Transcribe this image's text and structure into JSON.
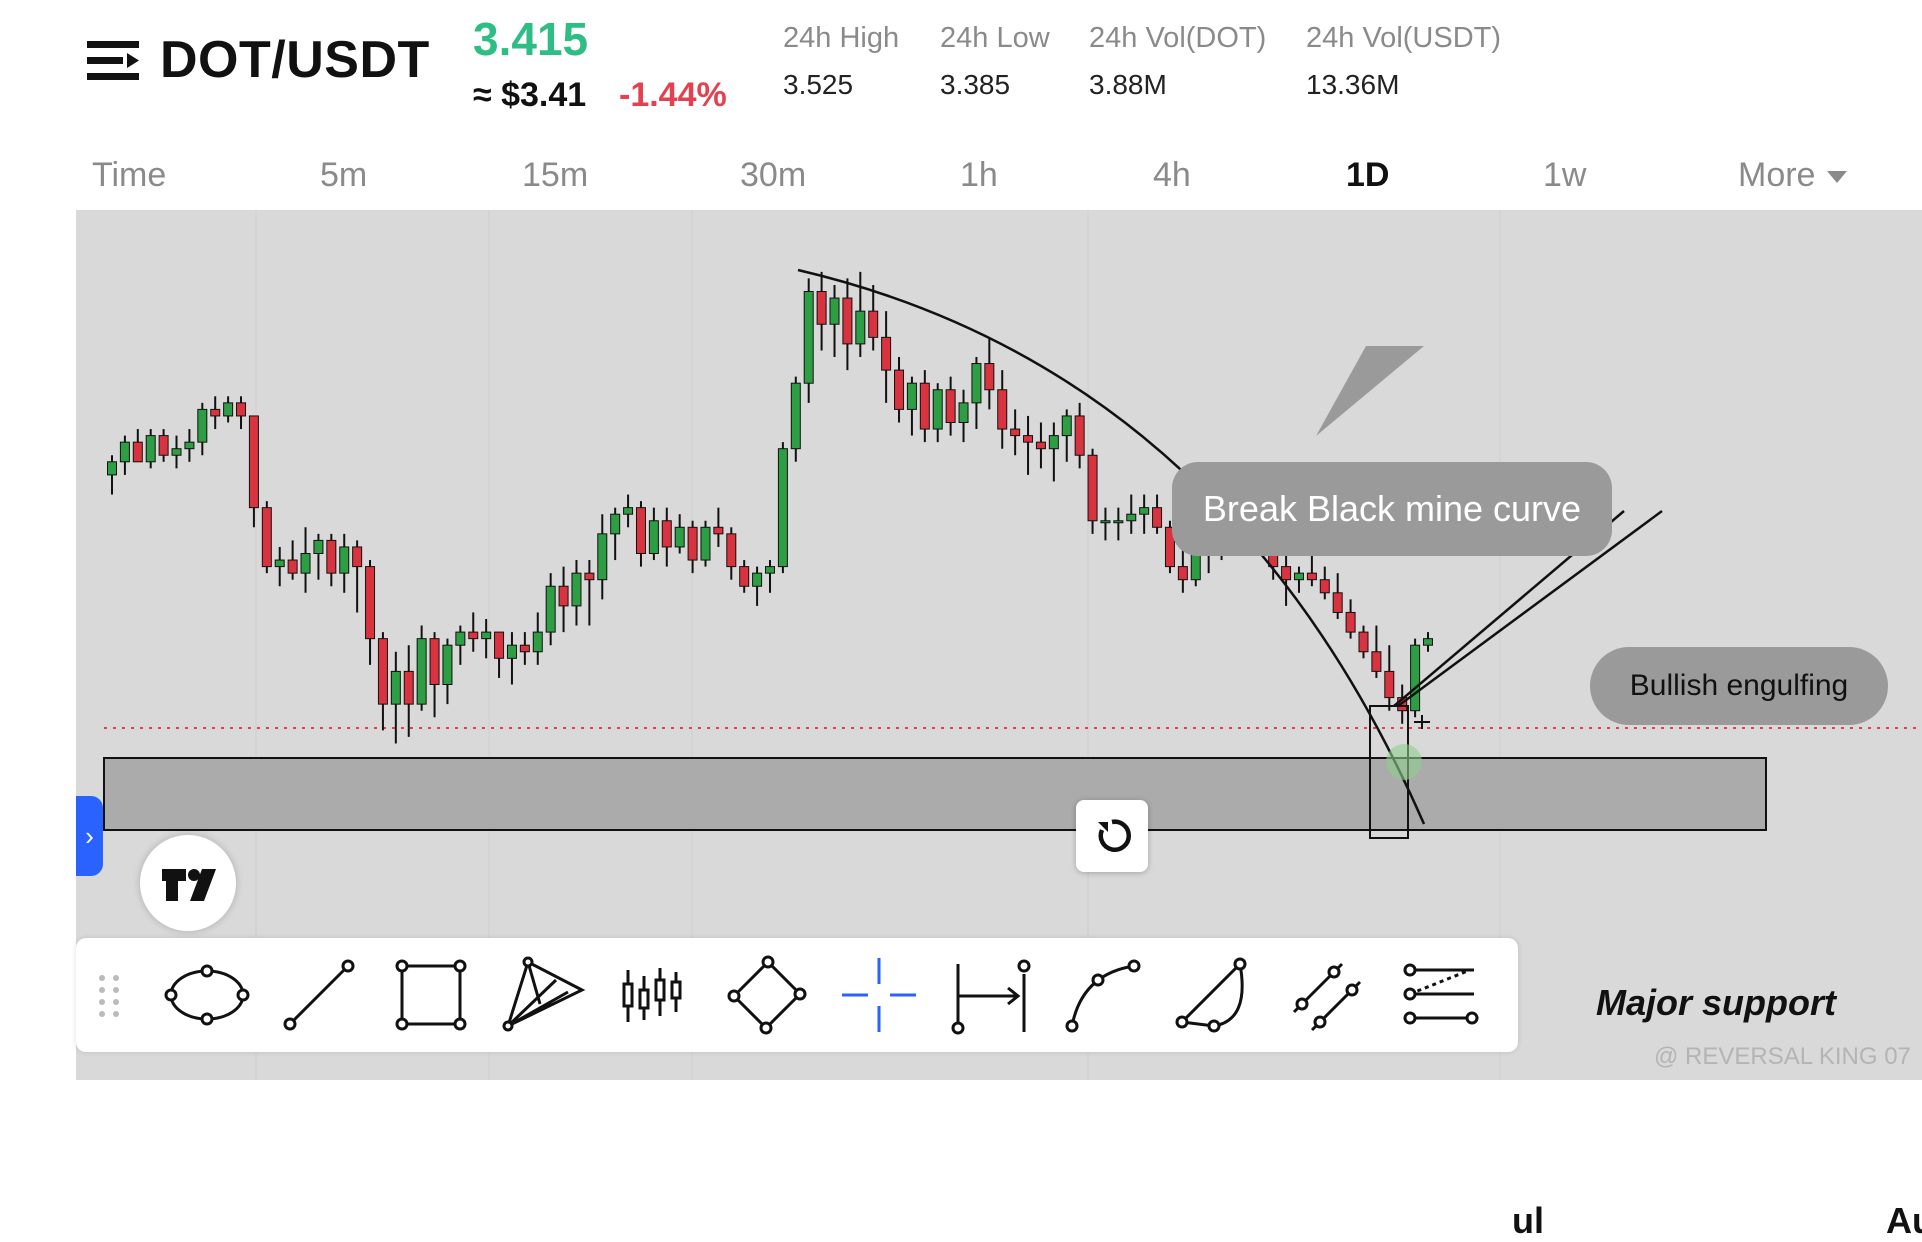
{
  "header": {
    "pair": "DOT/USDT",
    "last_price": "3.415",
    "approx_price": "≈ $3.41",
    "change": "-1.44%",
    "stats": [
      {
        "label": "24h High",
        "value": "3.525"
      },
      {
        "label": "24h Low",
        "value": "3.385"
      },
      {
        "label": "24h Vol(DOT)",
        "value": "3.88M"
      },
      {
        "label": "24h Vol(USDT)",
        "value": "13.36M"
      }
    ],
    "menu_icon": "menu-lines-icon"
  },
  "timeframes": [
    {
      "label": "Time",
      "active": false
    },
    {
      "label": "5m",
      "active": false
    },
    {
      "label": "15m",
      "active": false
    },
    {
      "label": "30m",
      "active": false
    },
    {
      "label": "1h",
      "active": false
    },
    {
      "label": "4h",
      "active": false
    },
    {
      "label": "1D",
      "active": true
    },
    {
      "label": "1w",
      "active": false
    },
    {
      "label": "More",
      "active": false
    }
  ],
  "chart": {
    "callouts": [
      "Break Black mine curve",
      "Bullish engulfing"
    ],
    "support_label": "Major support",
    "x_axis_labels": [
      "ul",
      "Au"
    ],
    "colors": {
      "up": "#2e9e44",
      "down": "#d9333f",
      "background": "#d9d9d9",
      "support_zone": "#ababab",
      "price_line": "#e5404f"
    }
  },
  "chart_data": {
    "type": "candlestick",
    "ohlc": [
      [
        22,
        25,
        19,
        24
      ],
      [
        24,
        28,
        22,
        27
      ],
      [
        27,
        29,
        24,
        24
      ],
      [
        24,
        29,
        23,
        28
      ],
      [
        28,
        29,
        24,
        25
      ],
      [
        25,
        28,
        23,
        26
      ],
      [
        26,
        29,
        24,
        27
      ],
      [
        27,
        33,
        25,
        32
      ],
      [
        32,
        34,
        29,
        31
      ],
      [
        31,
        34,
        30,
        33
      ],
      [
        33,
        34,
        29,
        31
      ],
      [
        31,
        31,
        14,
        17
      ],
      [
        17,
        18,
        7,
        8
      ],
      [
        8,
        11,
        5,
        9
      ],
      [
        9,
        12,
        6,
        7
      ],
      [
        7,
        14,
        4,
        10
      ],
      [
        10,
        13,
        6,
        12
      ],
      [
        12,
        13,
        5,
        7
      ],
      [
        7,
        13,
        4,
        11
      ],
      [
        11,
        12,
        1,
        8
      ],
      [
        8,
        9,
        -7,
        -3
      ],
      [
        -3,
        -2,
        -17,
        -13
      ],
      [
        -13,
        -5,
        -19,
        -8
      ],
      [
        -8,
        -4,
        -18,
        -13
      ],
      [
        -13,
        -1,
        -14,
        -3
      ],
      [
        -3,
        -2,
        -15,
        -10
      ],
      [
        -10,
        -3,
        -13,
        -4
      ],
      [
        -4,
        -1,
        -7,
        -2
      ],
      [
        -2,
        1,
        -5,
        -3
      ],
      [
        -3,
        0,
        -6,
        -2
      ],
      [
        -2,
        -2,
        -9,
        -6
      ],
      [
        -6,
        -2,
        -10,
        -4
      ],
      [
        -4,
        -2,
        -7,
        -5
      ],
      [
        -5,
        1,
        -7,
        -2
      ],
      [
        -2,
        7,
        -4,
        5
      ],
      [
        5,
        8,
        -2,
        2
      ],
      [
        2,
        9,
        -1,
        7
      ],
      [
        7,
        9,
        -1,
        6
      ],
      [
        6,
        16,
        3,
        13
      ],
      [
        13,
        17,
        9,
        16
      ],
      [
        16,
        19,
        14,
        17
      ],
      [
        17,
        18,
        8,
        10
      ],
      [
        10,
        17,
        9,
        15
      ],
      [
        15,
        17,
        8,
        11
      ],
      [
        11,
        16,
        10,
        14
      ],
      [
        14,
        15,
        7,
        9
      ],
      [
        9,
        15,
        8,
        14
      ],
      [
        14,
        17,
        11,
        13
      ],
      [
        13,
        14,
        6,
        8
      ],
      [
        8,
        9,
        4,
        5
      ],
      [
        5,
        8,
        2,
        7
      ],
      [
        7,
        9,
        4,
        8
      ],
      [
        8,
        27,
        7,
        26
      ],
      [
        26,
        37,
        24,
        36
      ],
      [
        36,
        52,
        33,
        50
      ],
      [
        50,
        53,
        41,
        45
      ],
      [
        45,
        51,
        40,
        49
      ],
      [
        49,
        52,
        38,
        42
      ],
      [
        42,
        53,
        40,
        47
      ],
      [
        47,
        51,
        41,
        43
      ],
      [
        43,
        47,
        33,
        38
      ],
      [
        38,
        40,
        30,
        32
      ],
      [
        32,
        37,
        28,
        36
      ],
      [
        36,
        38,
        27,
        29
      ],
      [
        29,
        36,
        27,
        35
      ],
      [
        35,
        37,
        28,
        30
      ],
      [
        30,
        35,
        27,
        33
      ],
      [
        33,
        40,
        29,
        39
      ],
      [
        39,
        43,
        32,
        35
      ],
      [
        35,
        38,
        26,
        29
      ],
      [
        29,
        32,
        25,
        28
      ],
      [
        28,
        31,
        22,
        27
      ],
      [
        27,
        30,
        23,
        26
      ],
      [
        26,
        30,
        21,
        28
      ],
      [
        28,
        32,
        24,
        31
      ],
      [
        31,
        33,
        23,
        25
      ],
      [
        25,
        26,
        13,
        15
      ],
      [
        15,
        17,
        12,
        15
      ],
      [
        15,
        17,
        12,
        15
      ],
      [
        15,
        19,
        13,
        16
      ],
      [
        16,
        19,
        13,
        17
      ],
      [
        17,
        19,
        13,
        14
      ],
      [
        14,
        15,
        7,
        8
      ],
      [
        8,
        11,
        4,
        6
      ],
      [
        6,
        12,
        5,
        10
      ],
      [
        10,
        13,
        7,
        12
      ],
      [
        12,
        16,
        9,
        14
      ],
      [
        14,
        20,
        11,
        18
      ],
      [
        18,
        21,
        13,
        19
      ],
      [
        19,
        21,
        15,
        16
      ],
      [
        16,
        16,
        6,
        8
      ],
      [
        8,
        10,
        2,
        6
      ],
      [
        6,
        8,
        4,
        7
      ],
      [
        7,
        10,
        5,
        6
      ],
      [
        6,
        8,
        3,
        4
      ],
      [
        4,
        7,
        0,
        1
      ],
      [
        1,
        3,
        -3,
        -2
      ],
      [
        -2,
        -1,
        -6,
        -5
      ],
      [
        -5,
        -1,
        -9,
        -8
      ],
      [
        -8,
        -4,
        -14,
        -12
      ],
      [
        -12,
        -10,
        -16,
        -14
      ],
      [
        -14,
        -3,
        -15,
        -4
      ],
      [
        -4,
        -2,
        -5,
        -3
      ]
    ]
  },
  "toolbar": {
    "tools": [
      "ellipse-tool-icon",
      "trend-line-tool-icon",
      "rectangle-tool-icon",
      "pitchfork-tool-icon",
      "bars-pattern-tool-icon",
      "rotated-rectangle-tool-icon",
      "crosshair-tool-icon",
      "date-range-tool-icon",
      "curve-tool-icon",
      "arc-tool-icon",
      "parallel-channel-tool-icon",
      "fib-retracement-tool-icon"
    ]
  },
  "watermark": "@ REVERSAL KING 07"
}
